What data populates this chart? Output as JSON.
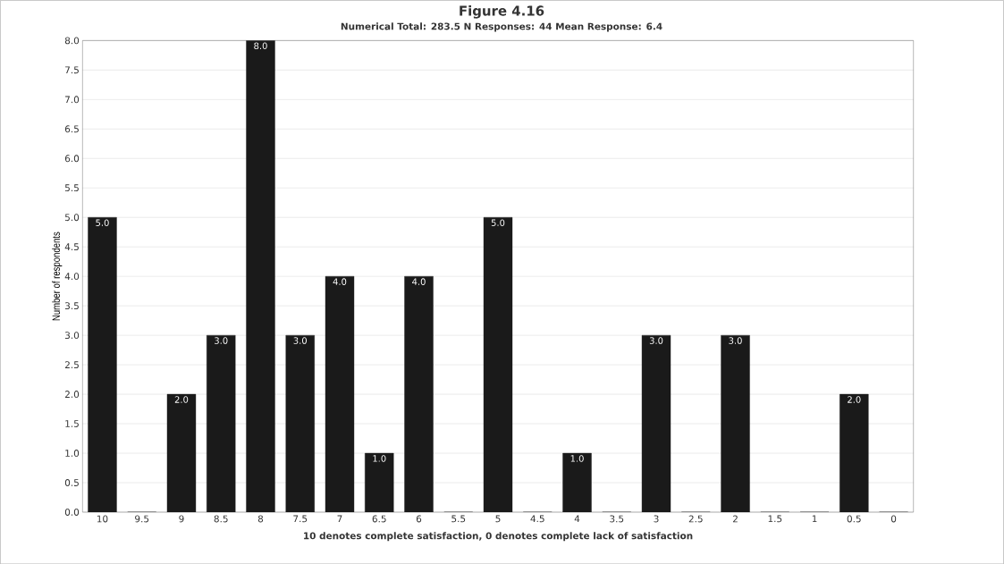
{
  "chart_data": {
    "type": "bar",
    "title": "Figure 4.16",
    "subtitle": "Numerical Total: 283.5   N Responses: 44   Mean Response: 6.4",
    "xlabel": "10 denotes complete satisfaction, 0 denotes complete lack of satisfaction",
    "ylabel": "Number of respondents",
    "categories": [
      "10",
      "9.5",
      "9",
      "8.5",
      "8",
      "7.5",
      "7",
      "6.5",
      "6",
      "5.5",
      "5",
      "4.5",
      "4",
      "3.5",
      "3",
      "2.5",
      "2",
      "1.5",
      "1",
      "0.5",
      "0"
    ],
    "values": [
      5,
      0,
      2,
      3,
      8,
      3,
      4,
      1,
      4,
      0,
      5,
      0,
      1,
      0,
      3,
      0,
      3,
      0,
      0,
      2,
      0
    ],
    "value_labels": [
      "5.0",
      null,
      "2.0",
      "3.0",
      "8.0",
      "3.0",
      "4.0",
      "1.0",
      "4.0",
      null,
      "5.0",
      null,
      "1.0",
      null,
      "3.0",
      null,
      "3.0",
      null,
      null,
      "2.0",
      null
    ],
    "color": "#1a1a1a",
    "ylim": [
      0,
      8
    ],
    "yticks": [
      {
        "value": 0,
        "label": "0.0"
      },
      {
        "value": 0.5,
        "label": "0.5"
      },
      {
        "value": 1,
        "label": "1.0"
      },
      {
        "value": 1.5,
        "label": "1.5"
      },
      {
        "value": 2,
        "label": "2.0"
      },
      {
        "value": 2.5,
        "label": "2.5"
      },
      {
        "value": 3,
        "label": "3.0"
      },
      {
        "value": 3.5,
        "label": "3.5"
      },
      {
        "value": 4,
        "label": "4.0"
      },
      {
        "value": 4.5,
        "label": "4.5"
      },
      {
        "value": 5,
        "label": "5.0"
      },
      {
        "value": 5.5,
        "label": "5.5"
      },
      {
        "value": 6,
        "label": "6.0"
      },
      {
        "value": 6.5,
        "label": "6.5"
      },
      {
        "value": 7,
        "label": "7.0"
      },
      {
        "value": 7.5,
        "label": "7.5"
      },
      {
        "value": 8,
        "label": "8.0"
      }
    ],
    "grid": "y"
  }
}
